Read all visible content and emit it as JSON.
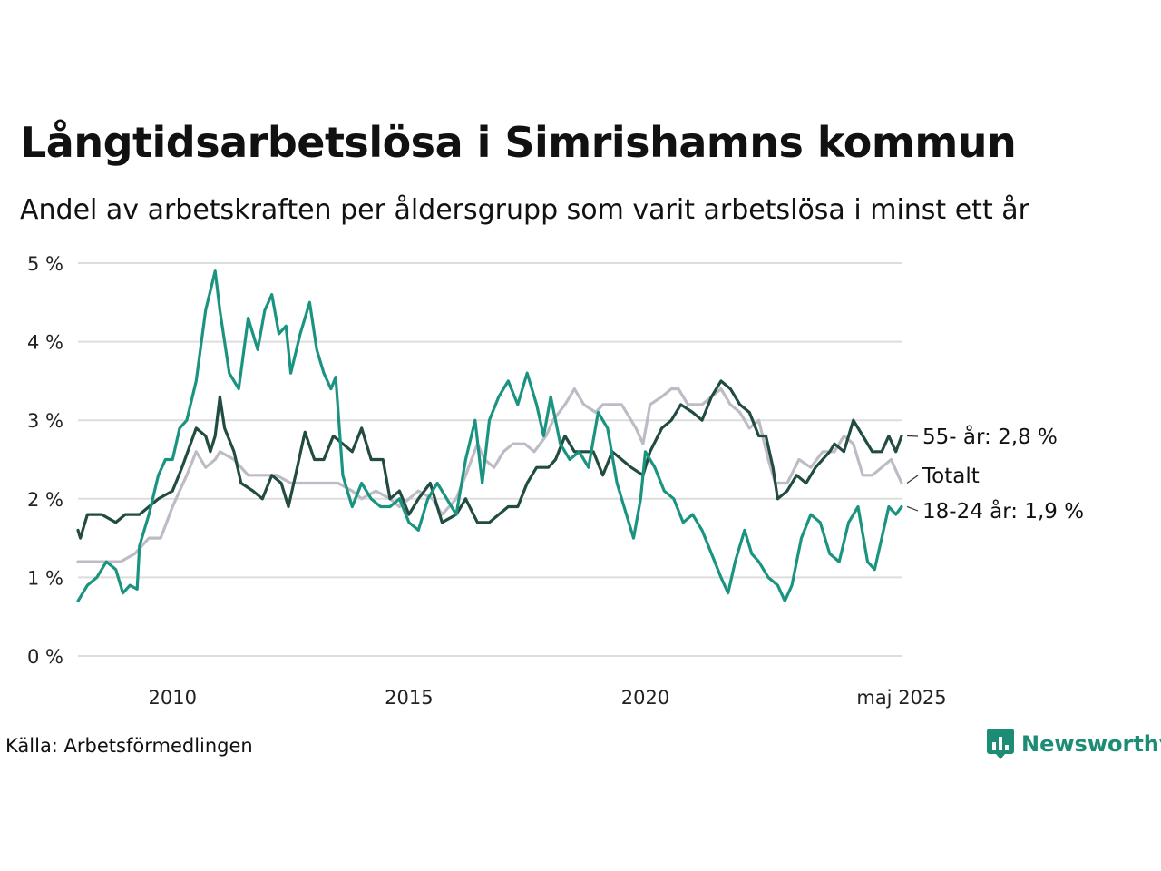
{
  "title": "Långtidsarbetslösa i Simrishamns kommun",
  "subtitle": "Andel av arbetskraften per åldersgrupp som varit arbetslösa i minst ett år",
  "source": "Källa: Arbetsförmedlingen",
  "brand": {
    "name": "Newsworthy",
    "icon": "newsworthy-chart-bubble-icon"
  },
  "colors": {
    "total": "#bdbcc6",
    "age_55": "#224b41",
    "age_18_24": "#1a9480",
    "grid": "#dddddd",
    "brand": "#1d8c74"
  },
  "chart_data": {
    "type": "line",
    "grid": true,
    "ylim": [
      0,
      5
    ],
    "xlim": [
      2008.0,
      2025.42
    ],
    "y_ticks": [
      {
        "value": 0,
        "label": "0 %"
      },
      {
        "value": 1,
        "label": "1 %"
      },
      {
        "value": 2,
        "label": "2 %"
      },
      {
        "value": 3,
        "label": "3 %"
      },
      {
        "value": 4,
        "label": "4 %"
      },
      {
        "value": 5,
        "label": "5 %"
      }
    ],
    "x_ticks": [
      {
        "value": 2010,
        "label": "2010"
      },
      {
        "value": 2015,
        "label": "2015"
      },
      {
        "value": 2020,
        "label": "2020"
      },
      {
        "value": 2025.42,
        "label": "maj 2025"
      }
    ],
    "series": [
      {
        "key": "total",
        "name": "Totalt",
        "label": "Totalt",
        "points": [
          [
            2008.0,
            1.2
          ],
          [
            2008.5,
            1.2
          ],
          [
            2008.9,
            1.2
          ],
          [
            2009.2,
            1.3
          ],
          [
            2009.5,
            1.5
          ],
          [
            2009.75,
            1.5
          ],
          [
            2010.0,
            1.9
          ],
          [
            2010.3,
            2.3
          ],
          [
            2010.5,
            2.6
          ],
          [
            2010.7,
            2.4
          ],
          [
            2010.9,
            2.5
          ],
          [
            2011.0,
            2.6
          ],
          [
            2011.3,
            2.5
          ],
          [
            2011.6,
            2.3
          ],
          [
            2011.9,
            2.3
          ],
          [
            2012.2,
            2.3
          ],
          [
            2012.5,
            2.2
          ],
          [
            2012.8,
            2.2
          ],
          [
            2013.1,
            2.2
          ],
          [
            2013.5,
            2.2
          ],
          [
            2013.8,
            2.1
          ],
          [
            2014.0,
            2.0
          ],
          [
            2014.3,
            2.1
          ],
          [
            2014.6,
            2.0
          ],
          [
            2014.8,
            1.9
          ],
          [
            2015.0,
            2.0
          ],
          [
            2015.2,
            2.1
          ],
          [
            2015.5,
            2.0
          ],
          [
            2015.7,
            1.8
          ],
          [
            2016.0,
            2.0
          ],
          [
            2016.2,
            2.3
          ],
          [
            2016.45,
            2.7
          ],
          [
            2016.6,
            2.5
          ],
          [
            2016.8,
            2.4
          ],
          [
            2017.0,
            2.6
          ],
          [
            2017.2,
            2.7
          ],
          [
            2017.45,
            2.7
          ],
          [
            2017.65,
            2.6
          ],
          [
            2017.9,
            2.8
          ],
          [
            2018.05,
            3.0
          ],
          [
            2018.3,
            3.2
          ],
          [
            2018.5,
            3.4
          ],
          [
            2018.7,
            3.2
          ],
          [
            2018.95,
            3.1
          ],
          [
            2019.1,
            3.2
          ],
          [
            2019.3,
            3.2
          ],
          [
            2019.5,
            3.2
          ],
          [
            2019.8,
            2.9
          ],
          [
            2019.95,
            2.7
          ],
          [
            2020.1,
            3.2
          ],
          [
            2020.35,
            3.3
          ],
          [
            2020.55,
            3.4
          ],
          [
            2020.7,
            3.4
          ],
          [
            2020.9,
            3.2
          ],
          [
            2021.2,
            3.2
          ],
          [
            2021.4,
            3.3
          ],
          [
            2021.6,
            3.4
          ],
          [
            2021.8,
            3.2
          ],
          [
            2022.0,
            3.1
          ],
          [
            2022.2,
            2.9
          ],
          [
            2022.4,
            3.0
          ],
          [
            2022.6,
            2.5
          ],
          [
            2022.75,
            2.2
          ],
          [
            2023.0,
            2.2
          ],
          [
            2023.25,
            2.5
          ],
          [
            2023.5,
            2.4
          ],
          [
            2023.75,
            2.6
          ],
          [
            2024.0,
            2.6
          ],
          [
            2024.2,
            2.8
          ],
          [
            2024.4,
            2.7
          ],
          [
            2024.6,
            2.3
          ],
          [
            2024.8,
            2.3
          ],
          [
            2025.0,
            2.4
          ],
          [
            2025.2,
            2.5
          ],
          [
            2025.42,
            2.2
          ]
        ]
      },
      {
        "key": "age_55",
        "name": "55- år",
        "label": "55- år: 2,8 %",
        "points": [
          [
            2008.0,
            1.6
          ],
          [
            2008.05,
            1.5
          ],
          [
            2008.2,
            1.8
          ],
          [
            2008.5,
            1.8
          ],
          [
            2008.8,
            1.7
          ],
          [
            2009.0,
            1.8
          ],
          [
            2009.3,
            1.8
          ],
          [
            2009.5,
            1.9
          ],
          [
            2009.7,
            2.0
          ],
          [
            2010.0,
            2.1
          ],
          [
            2010.2,
            2.4
          ],
          [
            2010.5,
            2.9
          ],
          [
            2010.7,
            2.8
          ],
          [
            2010.8,
            2.6
          ],
          [
            2010.9,
            2.8
          ],
          [
            2011.0,
            3.3
          ],
          [
            2011.1,
            2.9
          ],
          [
            2011.3,
            2.6
          ],
          [
            2011.45,
            2.2
          ],
          [
            2011.7,
            2.1
          ],
          [
            2011.9,
            2.0
          ],
          [
            2012.1,
            2.3
          ],
          [
            2012.3,
            2.2
          ],
          [
            2012.45,
            1.9
          ],
          [
            2012.6,
            2.3
          ],
          [
            2012.8,
            2.85
          ],
          [
            2013.0,
            2.5
          ],
          [
            2013.2,
            2.5
          ],
          [
            2013.4,
            2.8
          ],
          [
            2013.6,
            2.7
          ],
          [
            2013.8,
            2.6
          ],
          [
            2014.0,
            2.9
          ],
          [
            2014.2,
            2.5
          ],
          [
            2014.45,
            2.5
          ],
          [
            2014.6,
            2.0
          ],
          [
            2014.8,
            2.1
          ],
          [
            2015.0,
            1.8
          ],
          [
            2015.2,
            2.0
          ],
          [
            2015.45,
            2.2
          ],
          [
            2015.7,
            1.7
          ],
          [
            2016.0,
            1.8
          ],
          [
            2016.2,
            2.0
          ],
          [
            2016.45,
            1.7
          ],
          [
            2016.7,
            1.7
          ],
          [
            2016.9,
            1.8
          ],
          [
            2017.1,
            1.9
          ],
          [
            2017.3,
            1.9
          ],
          [
            2017.5,
            2.2
          ],
          [
            2017.7,
            2.4
          ],
          [
            2017.95,
            2.4
          ],
          [
            2018.1,
            2.5
          ],
          [
            2018.3,
            2.8
          ],
          [
            2018.5,
            2.6
          ],
          [
            2018.7,
            2.6
          ],
          [
            2018.9,
            2.6
          ],
          [
            2019.1,
            2.3
          ],
          [
            2019.3,
            2.6
          ],
          [
            2019.5,
            2.5
          ],
          [
            2019.7,
            2.4
          ],
          [
            2019.95,
            2.3
          ],
          [
            2020.1,
            2.6
          ],
          [
            2020.35,
            2.9
          ],
          [
            2020.55,
            3.0
          ],
          [
            2020.75,
            3.2
          ],
          [
            2021.0,
            3.1
          ],
          [
            2021.2,
            3.0
          ],
          [
            2021.4,
            3.3
          ],
          [
            2021.6,
            3.5
          ],
          [
            2021.8,
            3.4
          ],
          [
            2022.0,
            3.2
          ],
          [
            2022.2,
            3.1
          ],
          [
            2022.4,
            2.8
          ],
          [
            2022.55,
            2.8
          ],
          [
            2022.7,
            2.4
          ],
          [
            2022.8,
            2.0
          ],
          [
            2023.0,
            2.1
          ],
          [
            2023.2,
            2.3
          ],
          [
            2023.4,
            2.2
          ],
          [
            2023.6,
            2.4
          ],
          [
            2023.9,
            2.6
          ],
          [
            2024.0,
            2.7
          ],
          [
            2024.2,
            2.6
          ],
          [
            2024.4,
            3.0
          ],
          [
            2024.6,
            2.8
          ],
          [
            2024.8,
            2.6
          ],
          [
            2025.0,
            2.6
          ],
          [
            2025.15,
            2.8
          ],
          [
            2025.3,
            2.6
          ],
          [
            2025.42,
            2.8
          ]
        ]
      },
      {
        "key": "age_18_24",
        "name": "18-24 år",
        "label": "18-24 år: 1,9 %",
        "points": [
          [
            2008.0,
            0.7
          ],
          [
            2008.2,
            0.9
          ],
          [
            2008.4,
            1.0
          ],
          [
            2008.6,
            1.2
          ],
          [
            2008.8,
            1.1
          ],
          [
            2008.95,
            0.8
          ],
          [
            2009.1,
            0.9
          ],
          [
            2009.25,
            0.85
          ],
          [
            2009.3,
            1.4
          ],
          [
            2009.5,
            1.8
          ],
          [
            2009.7,
            2.3
          ],
          [
            2009.85,
            2.5
          ],
          [
            2010.0,
            2.5
          ],
          [
            2010.15,
            2.9
          ],
          [
            2010.3,
            3.0
          ],
          [
            2010.5,
            3.5
          ],
          [
            2010.7,
            4.4
          ],
          [
            2010.9,
            4.9
          ],
          [
            2011.0,
            4.4
          ],
          [
            2011.2,
            3.6
          ],
          [
            2011.4,
            3.4
          ],
          [
            2011.6,
            4.3
          ],
          [
            2011.8,
            3.9
          ],
          [
            2011.95,
            4.4
          ],
          [
            2012.1,
            4.6
          ],
          [
            2012.25,
            4.1
          ],
          [
            2012.4,
            4.2
          ],
          [
            2012.5,
            3.6
          ],
          [
            2012.7,
            4.1
          ],
          [
            2012.9,
            4.5
          ],
          [
            2013.05,
            3.9
          ],
          [
            2013.2,
            3.6
          ],
          [
            2013.35,
            3.4
          ],
          [
            2013.45,
            3.55
          ],
          [
            2013.6,
            2.3
          ],
          [
            2013.8,
            1.9
          ],
          [
            2014.0,
            2.2
          ],
          [
            2014.2,
            2.0
          ],
          [
            2014.4,
            1.9
          ],
          [
            2014.6,
            1.9
          ],
          [
            2014.8,
            2.0
          ],
          [
            2015.0,
            1.7
          ],
          [
            2015.2,
            1.6
          ],
          [
            2015.4,
            2.0
          ],
          [
            2015.6,
            2.2
          ],
          [
            2015.8,
            2.0
          ],
          [
            2016.0,
            1.8
          ],
          [
            2016.2,
            2.5
          ],
          [
            2016.4,
            3.0
          ],
          [
            2016.55,
            2.2
          ],
          [
            2016.7,
            3.0
          ],
          [
            2016.9,
            3.3
          ],
          [
            2017.1,
            3.5
          ],
          [
            2017.3,
            3.2
          ],
          [
            2017.5,
            3.6
          ],
          [
            2017.7,
            3.2
          ],
          [
            2017.85,
            2.8
          ],
          [
            2018.0,
            3.3
          ],
          [
            2018.2,
            2.7
          ],
          [
            2018.4,
            2.5
          ],
          [
            2018.6,
            2.6
          ],
          [
            2018.8,
            2.4
          ],
          [
            2019.0,
            3.1
          ],
          [
            2019.2,
            2.9
          ],
          [
            2019.4,
            2.2
          ],
          [
            2019.6,
            1.8
          ],
          [
            2019.75,
            1.5
          ],
          [
            2019.9,
            2.0
          ],
          [
            2020.0,
            2.6
          ],
          [
            2020.2,
            2.4
          ],
          [
            2020.4,
            2.1
          ],
          [
            2020.6,
            2.0
          ],
          [
            2020.8,
            1.7
          ],
          [
            2021.0,
            1.8
          ],
          [
            2021.2,
            1.6
          ],
          [
            2021.4,
            1.3
          ],
          [
            2021.6,
            1.0
          ],
          [
            2021.75,
            0.8
          ],
          [
            2021.9,
            1.2
          ],
          [
            2022.1,
            1.6
          ],
          [
            2022.25,
            1.3
          ],
          [
            2022.4,
            1.2
          ],
          [
            2022.6,
            1.0
          ],
          [
            2022.8,
            0.9
          ],
          [
            2022.95,
            0.7
          ],
          [
            2023.1,
            0.9
          ],
          [
            2023.3,
            1.5
          ],
          [
            2023.5,
            1.8
          ],
          [
            2023.7,
            1.7
          ],
          [
            2023.9,
            1.3
          ],
          [
            2024.1,
            1.2
          ],
          [
            2024.3,
            1.7
          ],
          [
            2024.5,
            1.9
          ],
          [
            2024.7,
            1.2
          ],
          [
            2024.85,
            1.1
          ],
          [
            2025.0,
            1.5
          ],
          [
            2025.15,
            1.9
          ],
          [
            2025.3,
            1.8
          ],
          [
            2025.42,
            1.9
          ]
        ]
      }
    ]
  }
}
